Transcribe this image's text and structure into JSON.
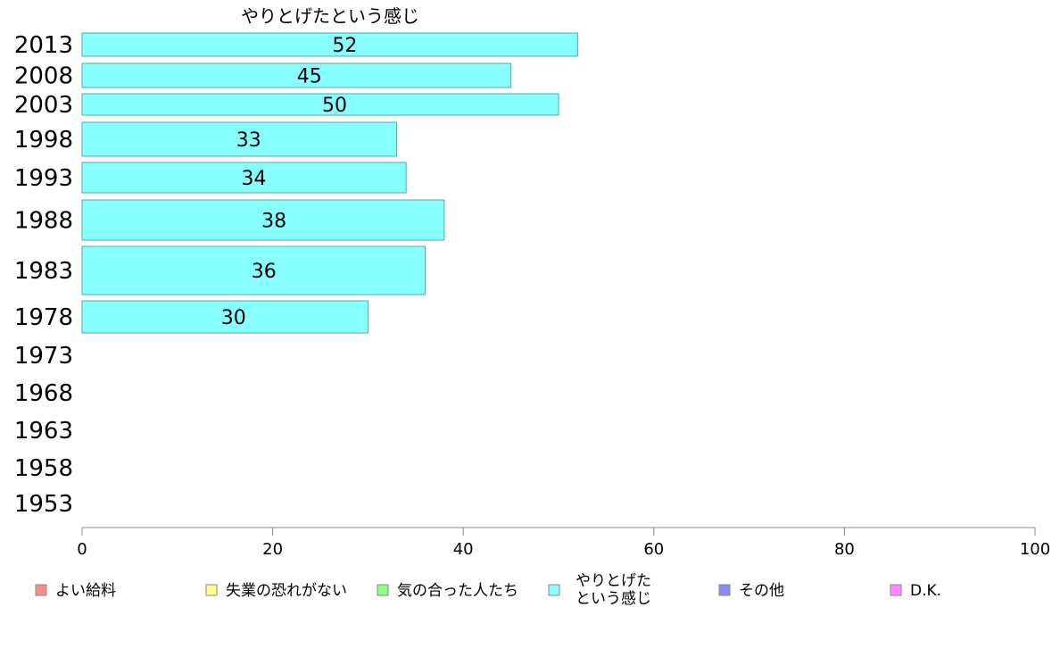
{
  "chart_data": {
    "type": "bar",
    "orientation": "horizontal",
    "title": "やりとげたという感じ",
    "categories": [
      "2013",
      "2008",
      "2003",
      "1998",
      "1993",
      "1988",
      "1983",
      "1978",
      "1973",
      "1968",
      "1963",
      "1958",
      "1953"
    ],
    "series": [
      {
        "name": "やりとげたという感じ",
        "values": [
          52,
          45,
          50,
          33,
          34,
          38,
          36,
          30,
          null,
          null,
          null,
          null,
          null
        ]
      }
    ],
    "xlim": [
      0,
      100
    ],
    "xticks": [
      0,
      20,
      40,
      60,
      80,
      100
    ],
    "xlabel": "",
    "ylabel": "",
    "grid": false,
    "legend_position": "bottom",
    "legend": [
      {
        "lines": [
          "よい給料"
        ],
        "color": "#ff8a8a"
      },
      {
        "lines": [
          "失業の恐れがない"
        ],
        "color": "#ffff8a"
      },
      {
        "lines": [
          "気の合った人たち"
        ],
        "color": "#8aff8a"
      },
      {
        "lines": [
          "やりとげた",
          "という感じ"
        ],
        "color": "#8affff"
      },
      {
        "lines": [
          "その他"
        ],
        "color": "#8a8aff"
      },
      {
        "lines": [
          "D.K."
        ],
        "color": "#ff8aff"
      }
    ],
    "bar_color": "#88ffff",
    "bar_stroke": "#55aaaa"
  }
}
